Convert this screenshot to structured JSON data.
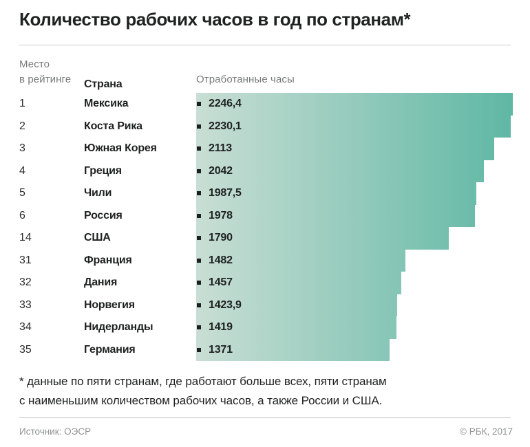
{
  "header": {
    "title": "Количество рабочих часов в год по странам*"
  },
  "table": {
    "col_rank_line1": "Место",
    "col_rank_line2": "в рейтинге",
    "col_country": "Страна",
    "col_hours": "Отработанные часы"
  },
  "chart_data": {
    "type": "bar",
    "orientation": "horizontal",
    "title": "Количество рабочих часов в год по странам*",
    "categories": [
      "Мексика",
      "Коста Рика",
      "Южная Корея",
      "Греция",
      "Чили",
      "Россия",
      "США",
      "Франция",
      "Дания",
      "Норвегия",
      "Нидерланды",
      "Германия"
    ],
    "ranks": [
      "1",
      "2",
      "3",
      "4",
      "5",
      "6",
      "14",
      "31",
      "32",
      "33",
      "34",
      "35"
    ],
    "values": [
      2246.4,
      2230.1,
      2113,
      2042,
      1987.5,
      1978,
      1790,
      1482,
      1457,
      1423.9,
      1419,
      1371
    ],
    "value_labels": [
      "2246,4",
      "2230,1",
      "2113",
      "2042",
      "1987,5",
      "1978",
      "1790",
      "1482",
      "1457",
      "1423,9",
      "1419",
      "1371"
    ],
    "xlabel": "Отработанные часы",
    "ylabel": "Страна",
    "xlim": [
      0,
      2246.4
    ],
    "grid": false,
    "legend": false,
    "bar_gradient_left": "#c9ded4",
    "bar_gradient_right": "#5fb7a4",
    "bullet_color": "#1c1f1e"
  },
  "footnote": {
    "line1": "* данные по пяти странам, где работают больше всех, пяти странам",
    "line2": "с наименьшим количеством рабочих часов, а также России и США."
  },
  "footer": {
    "source": "Источник: ОЭСР",
    "copyright": "© РБК, 2017"
  }
}
